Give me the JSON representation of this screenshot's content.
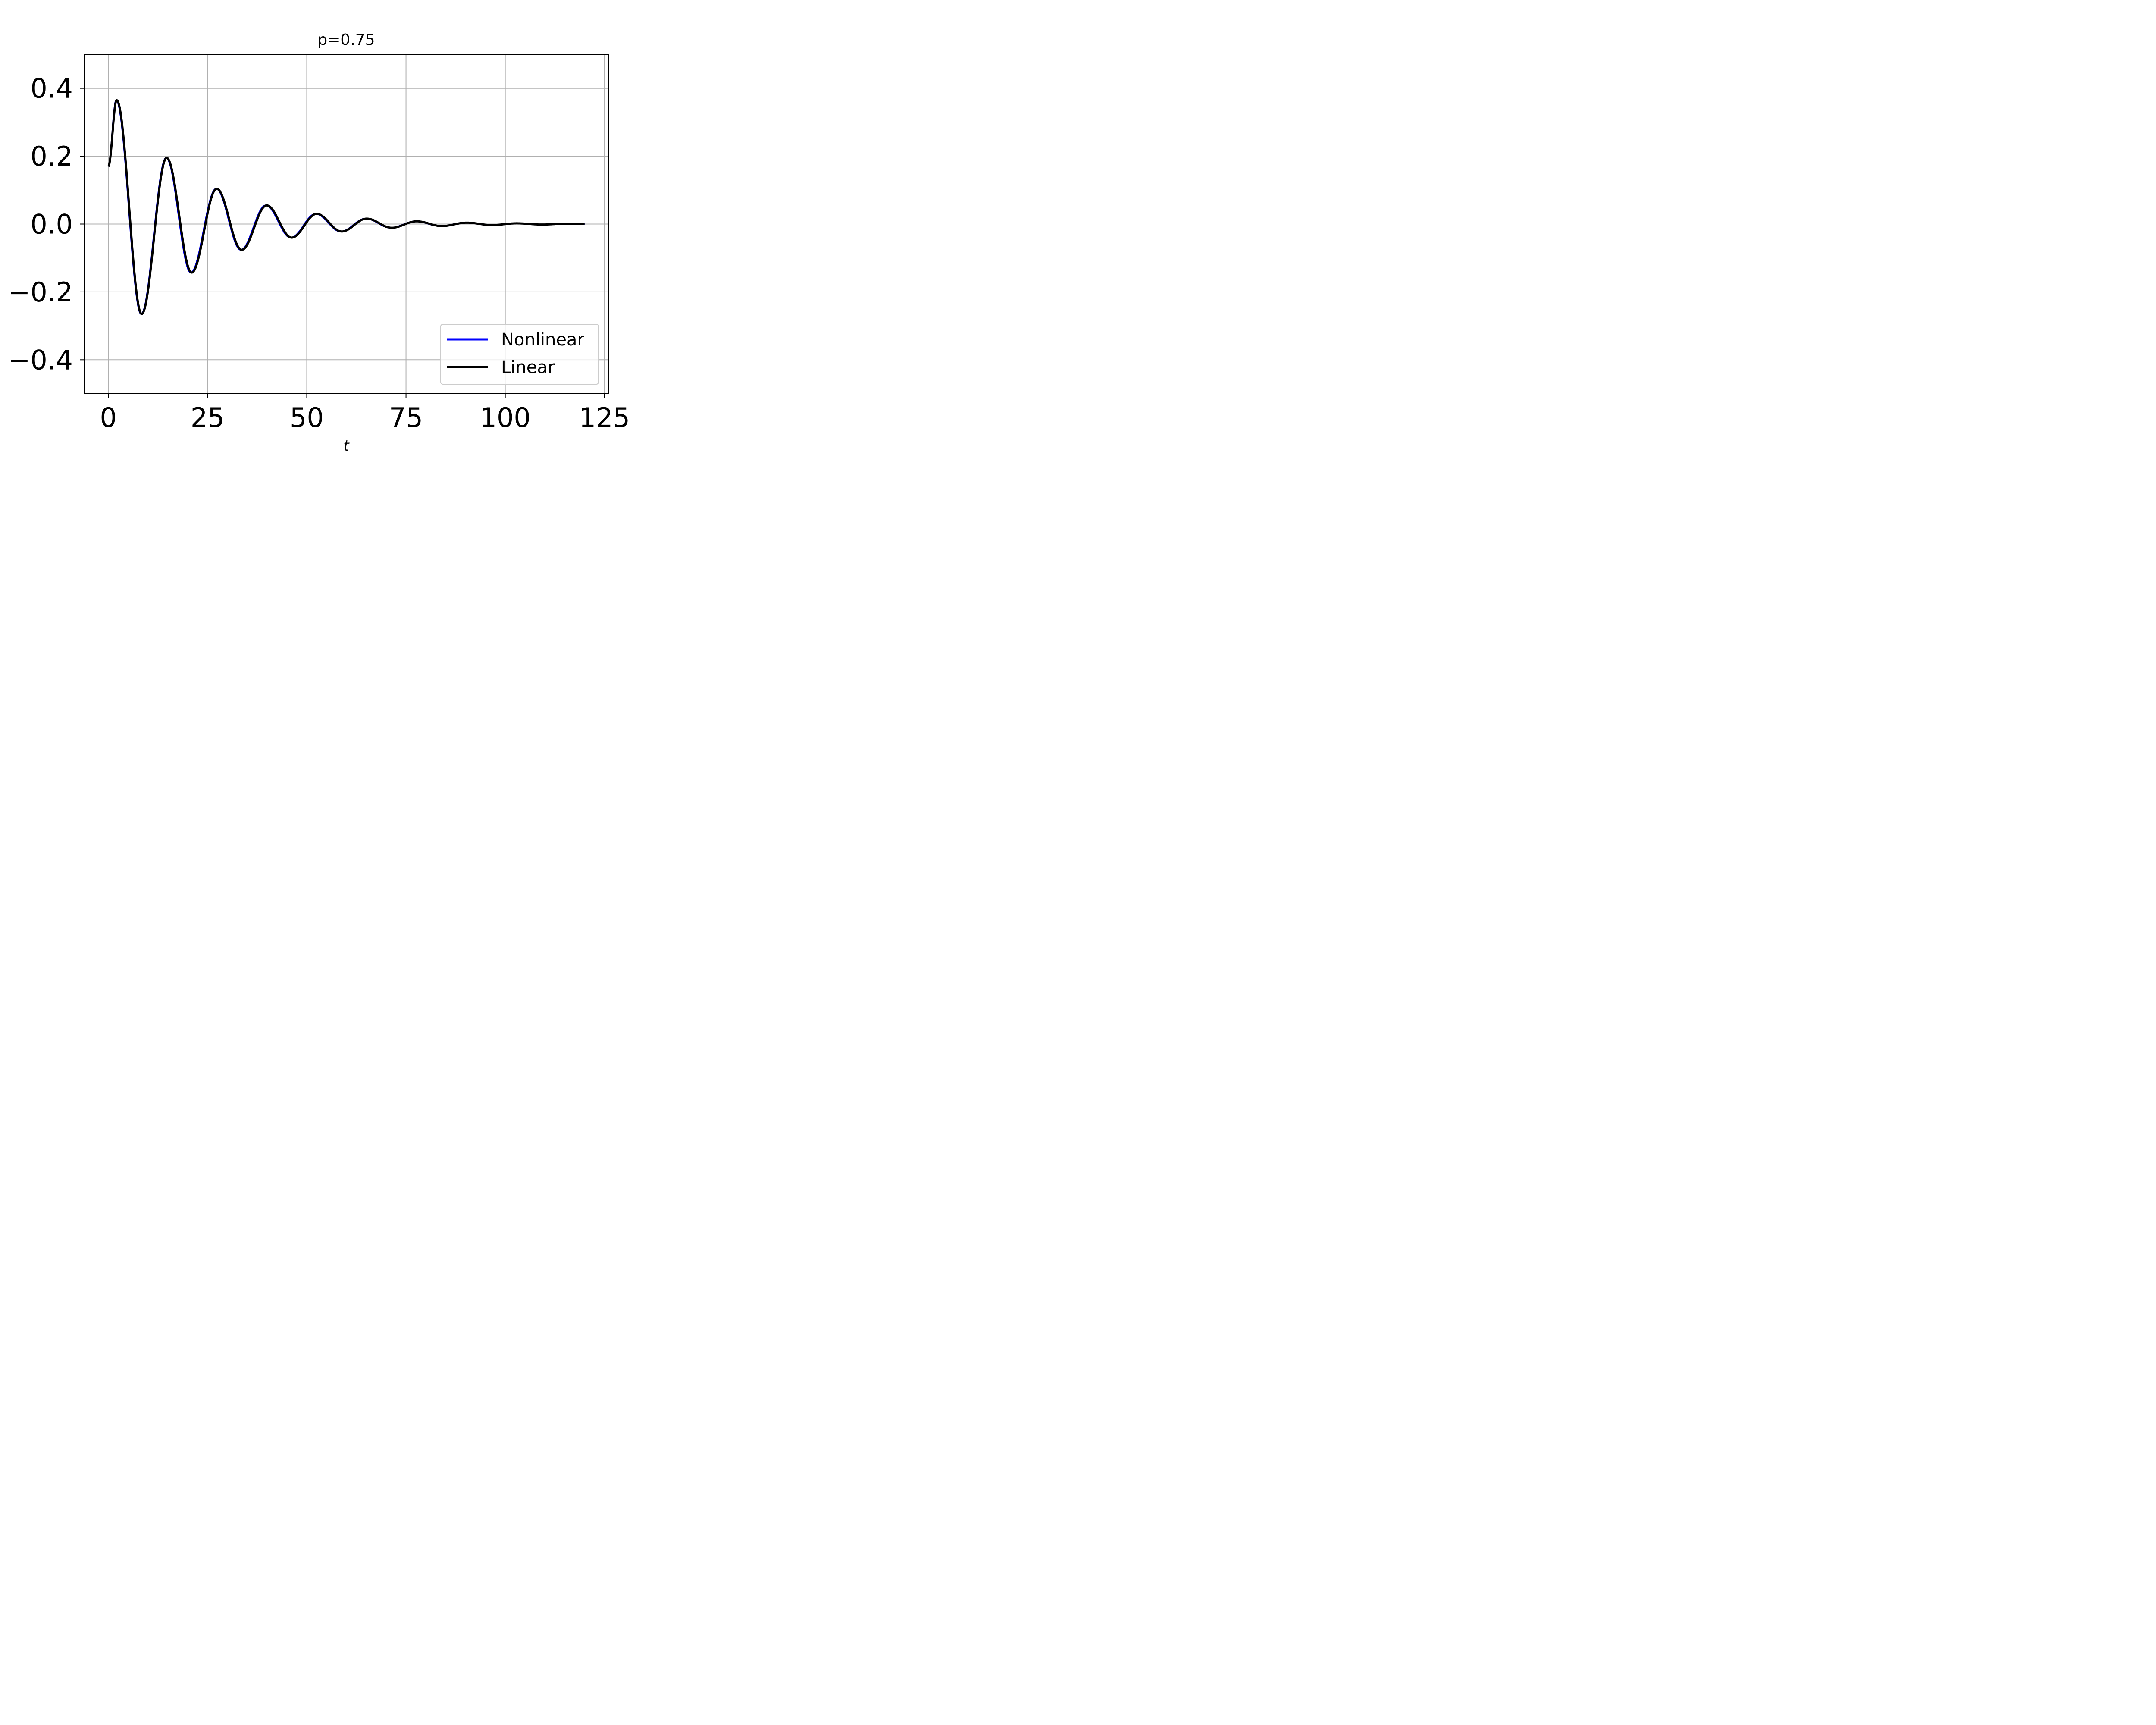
{
  "chart_data": {
    "type": "line",
    "title": "p=0.75",
    "xlabel": "t",
    "ylabel": "",
    "xlim": [
      -6,
      126
    ],
    "ylim": [
      -0.5,
      0.5
    ],
    "xticks": [
      0,
      25,
      50,
      75,
      100,
      125
    ],
    "xtick_labels": [
      "0",
      "25",
      "50",
      "75",
      "100",
      "125"
    ],
    "yticks": [
      0.4,
      0.2,
      0.0,
      -0.2,
      -0.4
    ],
    "ytick_labels": [
      "0.4",
      "0.2",
      "0.0",
      "−0.2",
      "−0.4"
    ],
    "grid": true,
    "legend": {
      "position": "lower-right",
      "entries": [
        "Nonlinear",
        "Linear"
      ]
    },
    "x_range": [
      0,
      120
    ],
    "series": [
      {
        "name": "Nonlinear",
        "color": "#0000ff",
        "extrema": [
          [
            0,
            0.17
          ],
          [
            2.0,
            0.365
          ],
          [
            8.3,
            -0.265
          ],
          [
            14.6,
            0.195
          ],
          [
            20.8,
            -0.143
          ],
          [
            27.2,
            0.104
          ],
          [
            33.4,
            -0.076
          ],
          [
            39.7,
            0.055
          ],
          [
            46.0,
            -0.04
          ],
          [
            52.3,
            0.03
          ],
          [
            58.6,
            -0.022
          ],
          [
            64.9,
            0.016
          ],
          [
            71.2,
            -0.011
          ],
          [
            77.5,
            0.008
          ],
          [
            83.8,
            -0.006
          ],
          [
            90.1,
            0.004
          ],
          [
            96.4,
            -0.003
          ],
          [
            102.7,
            0.002
          ],
          [
            109.0,
            -0.0015
          ],
          [
            115.3,
            0.001
          ],
          [
            120,
            0.0
          ]
        ]
      },
      {
        "name": "Linear",
        "color": "#000000",
        "extrema": [
          [
            0,
            0.17
          ],
          [
            2.1,
            0.365
          ],
          [
            8.4,
            -0.265
          ],
          [
            14.7,
            0.195
          ],
          [
            21.0,
            -0.143
          ],
          [
            27.3,
            0.104
          ],
          [
            33.6,
            -0.076
          ],
          [
            39.9,
            0.055
          ],
          [
            46.2,
            -0.04
          ],
          [
            52.5,
            0.03
          ],
          [
            58.8,
            -0.022
          ],
          [
            65.1,
            0.016
          ],
          [
            71.4,
            -0.011
          ],
          [
            77.7,
            0.008
          ],
          [
            84.0,
            -0.006
          ],
          [
            90.3,
            0.004
          ],
          [
            96.6,
            -0.003
          ],
          [
            102.9,
            0.002
          ],
          [
            109.2,
            -0.0015
          ],
          [
            115.5,
            0.001
          ],
          [
            120,
            0.0
          ]
        ]
      }
    ]
  }
}
